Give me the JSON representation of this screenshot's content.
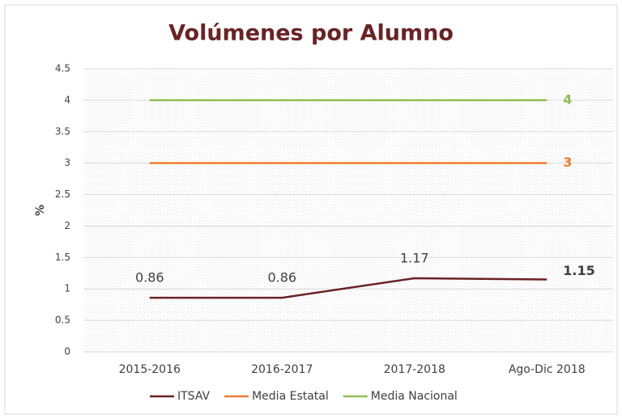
{
  "chart_data": {
    "type": "line",
    "title": "Volúmenes por Alumno",
    "y_label": "%",
    "categories": [
      "2015-2016",
      "2016-2017",
      "2017-2018",
      "Ago-Dic 2018"
    ],
    "series": [
      {
        "name": "ITSAV",
        "color": "#6b2224",
        "values": [
          0.86,
          0.86,
          1.17,
          1.15
        ],
        "data_labels": "all"
      },
      {
        "name": "Media Estatal",
        "color": "#ed7d31",
        "values": [
          3,
          3,
          3,
          3
        ],
        "data_labels": "last"
      },
      {
        "name": "Media Nacional",
        "color": "#92bc55",
        "values": [
          4,
          4,
          4,
          4
        ],
        "data_labels": "last"
      }
    ],
    "ylim": [
      0,
      4.5
    ],
    "yticks": [
      0,
      0.5,
      1,
      1.5,
      2,
      2.5,
      3,
      3.5,
      4,
      4.5
    ],
    "grid": true,
    "legend": "bottom"
  }
}
